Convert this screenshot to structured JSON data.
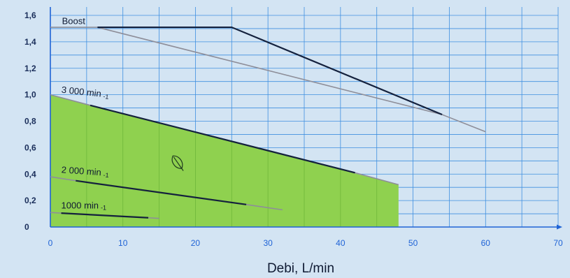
{
  "chart_data": {
    "type": "line",
    "xlabel": "Debi, L/min",
    "ylabel": "",
    "xlim": [
      0,
      70
    ],
    "ylim": [
      0,
      1.6
    ],
    "x_ticks": [
      "0",
      "10",
      "20",
      "30",
      "40",
      "50",
      "60",
      "70"
    ],
    "y_ticks": [
      "0",
      "0,2",
      "0,4",
      "0,6",
      "0,8",
      "1,0",
      "1,2",
      "1,4",
      "1,6"
    ],
    "grid": true,
    "eco_area": {
      "icon": "leaf-icon",
      "color": "#8fd14f",
      "points": [
        [
          0,
          1.0
        ],
        [
          48,
          0.32
        ],
        [
          48,
          0
        ],
        [
          0,
          0
        ]
      ]
    },
    "series": [
      {
        "name": "Boost",
        "label_main": "Boost",
        "label_sup": "",
        "color": "#14213d",
        "extension_color": "#8e8e99",
        "solid": [
          [
            6.5,
            1.51
          ],
          [
            25,
            1.51
          ],
          [
            54,
            0.85
          ]
        ],
        "extension": [
          [
            0,
            1.51
          ],
          [
            6.5,
            1.51
          ],
          [
            54,
            0.85
          ],
          [
            60,
            0.72
          ]
        ]
      },
      {
        "name": "3000 min-1",
        "label_main": "3 000 min",
        "label_sup": "-1",
        "color": "#14213d",
        "extension_color": "#8e8e99",
        "solid": [
          [
            5.5,
            0.92
          ],
          [
            42,
            0.41
          ]
        ],
        "extension": [
          [
            0,
            1.0
          ],
          [
            5.5,
            0.92
          ],
          [
            42,
            0.41
          ],
          [
            48,
            0.32
          ]
        ]
      },
      {
        "name": "2000 min-1",
        "label_main": "2 000 min",
        "label_sup": "-1",
        "color": "#14213d",
        "extension_color": "#8e8e99",
        "solid": [
          [
            3.5,
            0.35
          ],
          [
            27,
            0.17
          ]
        ],
        "extension": [
          [
            0,
            0.38
          ],
          [
            3.5,
            0.35
          ],
          [
            27,
            0.17
          ],
          [
            32,
            0.13
          ]
        ]
      },
      {
        "name": "1000 min-1",
        "label_main": "1000 min",
        "label_sup": "-1",
        "color": "#14213d",
        "extension_color": "#8e8e99",
        "solid": [
          [
            1.5,
            0.105
          ],
          [
            13.5,
            0.07
          ]
        ],
        "extension": [
          [
            0,
            0.11
          ],
          [
            1.5,
            0.105
          ],
          [
            13.5,
            0.07
          ],
          [
            15,
            0.065
          ]
        ]
      }
    ]
  }
}
